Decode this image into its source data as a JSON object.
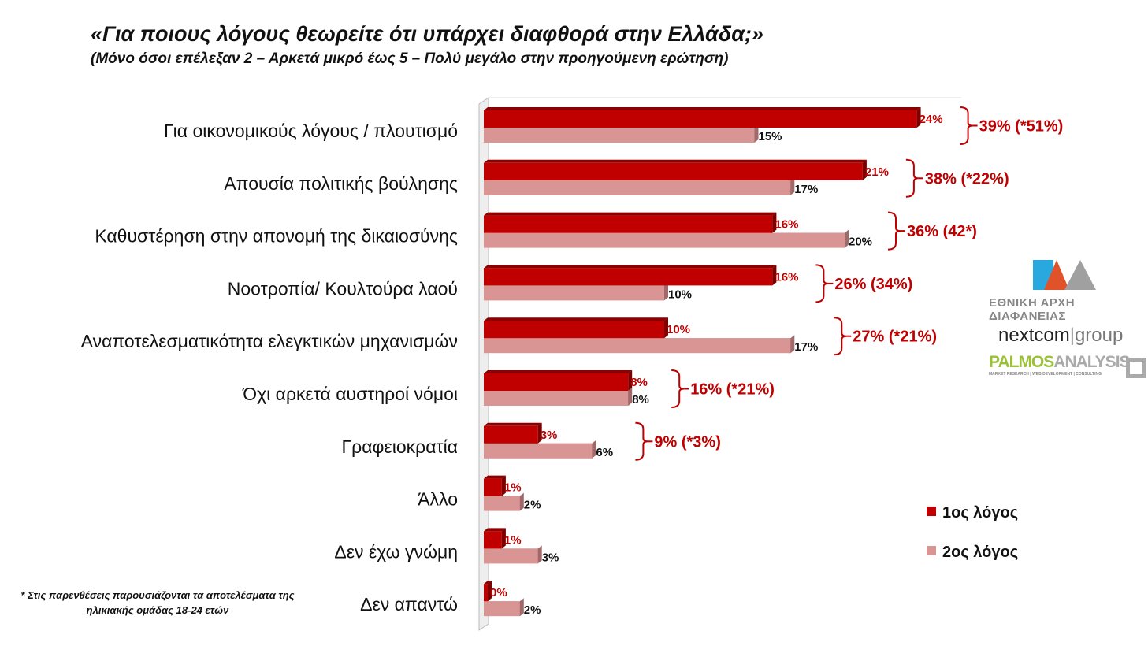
{
  "title": "«Για ποιους λόγους θεωρείτε ότι υπάρχει διαφθορά στην Ελλάδα;»",
  "subtitle": "(Μόνο όσοι επέλεξαν 2 – Αρκετά μικρό έως 5 – Πολύ μεγάλο στην προηγούμενη ερώτηση)",
  "footnote": "* Στις παρενθέσεις παρουσιάζονται τα αποτελέσματα της ηλικιακής ομάδας 18-24 ετών",
  "logos": {
    "eaa": "ΕΑΑ",
    "eaa_text": "ΕΘΝΙΚΗ ΑΡΧΗ ΔΙΑΦΑΝΕΙΑΣ",
    "nextcom": "nextcom",
    "nextcom_group": "group",
    "palmos_a": "PALMOS",
    "palmos_b": "ANALYSIS",
    "palmos_tag": "MARKET RESEARCH | WEB DEVELOPMENT | CONSULTING"
  },
  "chart_data": {
    "type": "bar",
    "orientation": "horizontal",
    "categories": [
      "Για οικονομικούς λόγους / πλουτισμό",
      "Απουσία πολιτικής βούλησης",
      "Καθυστέρηση στην απονομή της δικαιοσύνης",
      "Νοοτροπία/ Κουλτούρα λαού",
      "Αναποτελεσματικότητα ελεγκτικών μηχανισμών",
      "Όχι αρκετά αυστηροί νόμοι",
      "Γραφειοκρατία",
      "Άλλο",
      "Δεν έχω γνώμη",
      "Δεν απαντώ"
    ],
    "series": [
      {
        "name": "1ος λόγος",
        "color": "#c00000",
        "values": [
          24,
          21,
          16,
          16,
          10,
          8,
          3,
          1,
          1,
          0
        ]
      },
      {
        "name": "2ος λόγος",
        "color": "#d99594",
        "values": [
          15,
          17,
          20,
          10,
          17,
          8,
          6,
          2,
          3,
          2
        ]
      }
    ],
    "totals": [
      "39% (*51%)",
      "38% (*22%)",
      "36% (42*)",
      "26% (34%)",
      "27% (*21%)",
      "16% (*21%)",
      "9% (*3%)"
    ],
    "value_suffix": "%",
    "legend": "right",
    "grid": false
  }
}
